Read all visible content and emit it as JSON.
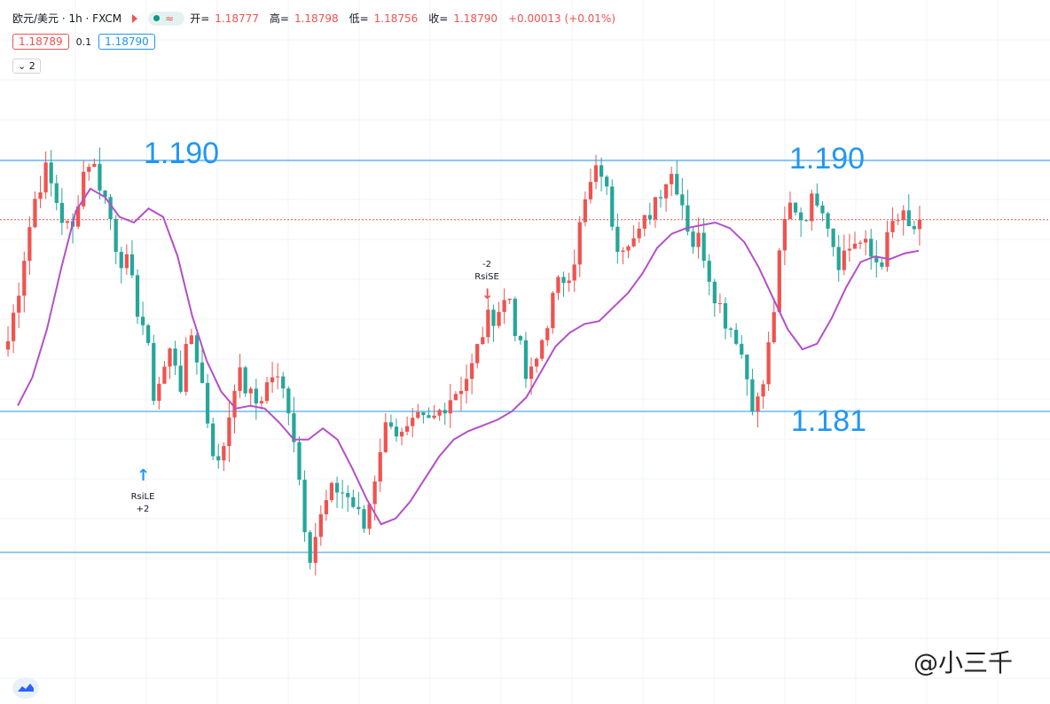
{
  "header": {
    "symbol": "欧元/美元 · 1h · FXCM",
    "open_label": "开=",
    "open": "1.18777",
    "high_label": "高=",
    "high": "1.18798",
    "low_label": "低=",
    "low": "1.18756",
    "close_label": "收=",
    "close": "1.18790",
    "change": "+0.00013 (+0.01%)",
    "bid": "1.18789",
    "spread": "0.1",
    "ask": "1.18790",
    "collapse_label": "2"
  },
  "annotations": {
    "level_upper_left": "1.190",
    "level_upper_right": "1.190",
    "level_lower": "1.181",
    "long_signal_name": "RsiLE",
    "long_signal_value": "+2",
    "short_signal_name": "RsiSE",
    "short_signal_value": "-2",
    "watermark": "@小三千"
  },
  "icons": [
    "flag-icon",
    "status-dot-icon",
    "wave-icon",
    "chevron-down-icon",
    "arrow-up-icon",
    "arrow-down-icon",
    "tradingview-logo-icon"
  ],
  "colors": {
    "up": "#ef5350",
    "down": "#26a69a",
    "ma": "#b44fc8",
    "level": "#2196f3",
    "last_price": "#ef5350"
  },
  "chart_data": {
    "type": "candlestick",
    "ylim": [
      1.1775,
      1.1918
    ],
    "horizontal_levels": [
      1.19,
      1.1811,
      1.1761
    ],
    "last_price": 1.1879,
    "series": [
      {
        "name": "price",
        "close_path": [
          1.1836,
          1.1852,
          1.1871,
          1.1887,
          1.1897,
          1.1889,
          1.1879,
          1.1873,
          1.1894,
          1.1901,
          1.1893,
          1.1883,
          1.1868,
          1.1863,
          1.185,
          1.184,
          1.1817,
          1.1825,
          1.1834,
          1.182,
          1.184,
          1.1827,
          1.1806,
          1.179,
          1.1805,
          1.1825,
          1.182,
          1.1813,
          1.1818,
          1.1824,
          1.1819,
          1.1812,
          1.1786,
          1.176,
          1.177,
          1.1779,
          1.1784,
          1.1782,
          1.1777,
          1.1769,
          1.1784,
          1.1802,
          1.1809,
          1.1801,
          1.1803,
          1.1807,
          1.1806,
          1.1809,
          1.1815,
          1.1818,
          1.1822,
          1.1827,
          1.1839,
          1.1845,
          1.1848,
          1.1852,
          1.1835,
          1.182,
          1.1829,
          1.1842,
          1.1853,
          1.1859,
          1.1864,
          1.1881,
          1.1892,
          1.1898,
          1.1883,
          1.187,
          1.1874,
          1.1871,
          1.1879,
          1.1887,
          1.1893,
          1.1896,
          1.1885,
          1.1871,
          1.1872,
          1.1859,
          1.1849,
          1.1842,
          1.1838,
          1.1824,
          1.1811,
          1.1823,
          1.1847,
          1.1875,
          1.1886,
          1.188,
          1.1884,
          1.1889,
          1.1878,
          1.1865,
          1.1868,
          1.1872,
          1.1869,
          1.1864,
          1.1866,
          1.1877,
          1.188,
          1.1874,
          1.1879
        ]
      },
      {
        "name": "ma",
        "values": [
          1.1813,
          1.1823,
          1.184,
          1.1862,
          1.1882,
          1.189,
          1.1887,
          1.188,
          1.1878,
          1.1883,
          1.188,
          1.1866,
          1.1845,
          1.1829,
          1.1818,
          1.1812,
          1.1813,
          1.1812,
          1.1807,
          1.1801,
          1.1801,
          1.1805,
          1.1801,
          1.1791,
          1.178,
          1.1771,
          1.1773,
          1.1779,
          1.1787,
          1.1795,
          1.1801,
          1.1804,
          1.1806,
          1.1808,
          1.1811,
          1.1816,
          1.1825,
          1.1834,
          1.1839,
          1.1842,
          1.1843,
          1.1848,
          1.1853,
          1.186,
          1.1869,
          1.1874,
          1.1876,
          1.1877,
          1.1878,
          1.1876,
          1.1871,
          1.1862,
          1.1851,
          1.184,
          1.1833,
          1.1835,
          1.1844,
          1.1855,
          1.1864,
          1.1866,
          1.1865,
          1.1867,
          1.1868
        ]
      }
    ],
    "signals": [
      {
        "name": "RsiLE",
        "value": "+2",
        "direction": "long"
      },
      {
        "name": "RsiSE",
        "value": "-2",
        "direction": "short"
      }
    ]
  }
}
